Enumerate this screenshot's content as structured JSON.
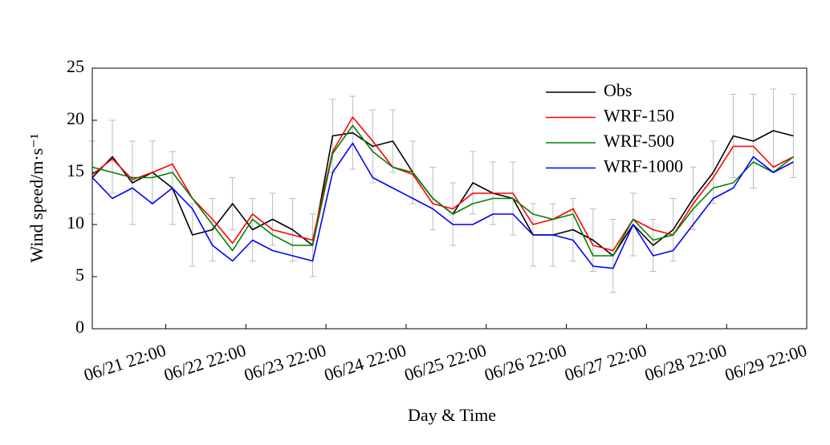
{
  "chart_data": {
    "type": "line",
    "x_label": "Day & Time",
    "y_label": "Wind speed/m·s⁻¹",
    "x": [
      0,
      6,
      12,
      18,
      24,
      30,
      36,
      42,
      48,
      54,
      60,
      66,
      72,
      78,
      84,
      90,
      96,
      102,
      108,
      114,
      120,
      126,
      132,
      138,
      144,
      150,
      156,
      162,
      168,
      174,
      180,
      186,
      192,
      198,
      204,
      210
    ],
    "xlim": [
      0,
      214
    ],
    "xticks": [
      {
        "value": 22,
        "label": "06/21 22:00"
      },
      {
        "value": 46,
        "label": "06/22 22:00"
      },
      {
        "value": 70,
        "label": "06/23 22:00"
      },
      {
        "value": 94,
        "label": "06/24 22:00"
      },
      {
        "value": 118,
        "label": "06/25 22:00"
      },
      {
        "value": 142,
        "label": "06/26 22:00"
      },
      {
        "value": 166,
        "label": "06/27 22:00"
      },
      {
        "value": 190,
        "label": "06/28 22:00"
      },
      {
        "value": 214,
        "label": "06/29 22:00"
      }
    ],
    "ylim": [
      0,
      25
    ],
    "yticks": [
      0,
      5,
      10,
      15,
      20,
      25
    ],
    "legend": "upper right",
    "series": [
      {
        "name": "Obs",
        "color": "#000000",
        "values": [
          14.5,
          16.5,
          14,
          15,
          13.5,
          9,
          9.5,
          12,
          9.5,
          10.5,
          9.5,
          8,
          18.5,
          18.8,
          17.5,
          18,
          15,
          12.5,
          11,
          14,
          13,
          12.5,
          9,
          9,
          9.5,
          8.5,
          7,
          10,
          8,
          9.5,
          12.5,
          15,
          18.5,
          18,
          19,
          18.5
        ],
        "errors": [
          3.5,
          3.5,
          4,
          3,
          3.5,
          3,
          3,
          2.5,
          3,
          2.5,
          3,
          3,
          3.5,
          3.5,
          3.5,
          3,
          3,
          3,
          3,
          3,
          3,
          3.5,
          3,
          3,
          3,
          3,
          3.5,
          3,
          2.5,
          3,
          3,
          3,
          4,
          4.5,
          4,
          4
        ]
      },
      {
        "name": "WRF-150",
        "color": "#ff0000",
        "values": [
          14.8,
          16.3,
          14.3,
          15,
          15.8,
          12.5,
          10.5,
          8.2,
          11,
          9.5,
          9,
          8.5,
          17,
          20.3,
          18,
          15.5,
          14.8,
          12,
          11.5,
          13,
          13,
          13,
          10,
          10.5,
          11.5,
          8,
          7.5,
          10.5,
          9.5,
          9,
          12,
          14.5,
          17.5,
          17.5,
          15.5,
          16.5
        ]
      },
      {
        "name": "WRF-500",
        "color": "#008000",
        "values": [
          15.5,
          15,
          14.5,
          14.5,
          15,
          12.5,
          10,
          7.5,
          10.5,
          9,
          8,
          8,
          16.8,
          19.5,
          17,
          15.5,
          15,
          12.5,
          11,
          12,
          12.5,
          12.5,
          11,
          10.5,
          11,
          7,
          7,
          10.5,
          8.5,
          9,
          11.5,
          13.5,
          14,
          16,
          15,
          16.5
        ]
      },
      {
        "name": "WRF-1000",
        "color": "#0000ff",
        "values": [
          14.5,
          12.5,
          13.5,
          12,
          13.5,
          11.5,
          8,
          6.5,
          8.5,
          7.5,
          7,
          6.5,
          15,
          17.8,
          14.5,
          13.5,
          12.5,
          11.5,
          10,
          10,
          11,
          11,
          9,
          9,
          8.5,
          6,
          5.8,
          10,
          7,
          7.5,
          10,
          12.5,
          13.5,
          16.5,
          15,
          16
        ]
      }
    ]
  }
}
